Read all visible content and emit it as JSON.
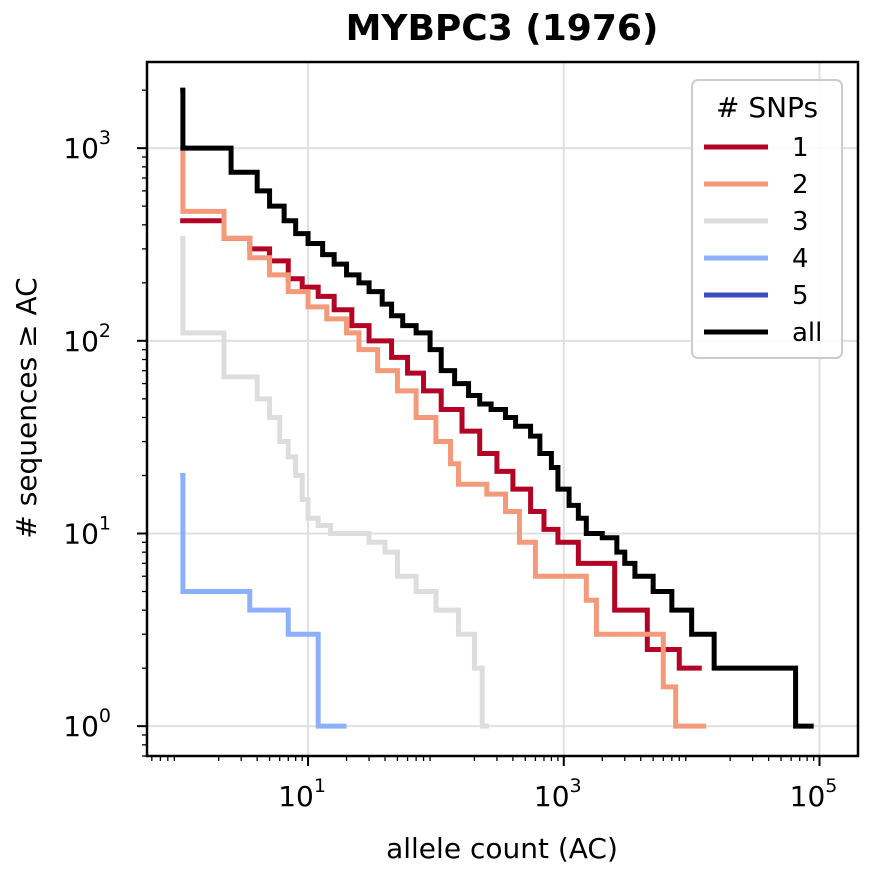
{
  "chart_data": {
    "type": "line",
    "subtype": "step (complementary cumulative count)",
    "title": "MYBPC3 (1976)",
    "xlabel": "allele count (AC)",
    "ylabel": "# sequences ≥ AC",
    "xscale": "log",
    "yscale": "log",
    "xlim": [
      0.55,
      200000
    ],
    "ylim": [
      0.7,
      2800
    ],
    "x_ticks": [
      {
        "value": 10,
        "label_base": "10",
        "label_exp": "1"
      },
      {
        "value": 1000,
        "label_base": "10",
        "label_exp": "3"
      },
      {
        "value": 100000,
        "label_base": "10",
        "label_exp": "5"
      }
    ],
    "y_ticks": [
      {
        "value": 1,
        "label_base": "10",
        "label_exp": "0"
      },
      {
        "value": 10,
        "label_base": "10",
        "label_exp": "1"
      },
      {
        "value": 100,
        "label_base": "10",
        "label_exp": "2"
      },
      {
        "value": 1000,
        "label_base": "10",
        "label_exp": "3"
      }
    ],
    "grid": true,
    "legend": {
      "title": "# SNPs",
      "position": "top-right"
    },
    "series": [
      {
        "name": "1",
        "color": "#b40426",
        "points": [
          [
            1,
            420
          ],
          [
            2.2,
            340
          ],
          [
            3.5,
            300
          ],
          [
            5,
            260
          ],
          [
            7,
            210
          ],
          [
            9,
            190
          ],
          [
            12,
            170
          ],
          [
            16,
            145
          ],
          [
            22,
            120
          ],
          [
            30,
            100
          ],
          [
            45,
            82
          ],
          [
            60,
            68
          ],
          [
            80,
            55
          ],
          [
            110,
            44
          ],
          [
            160,
            34
          ],
          [
            220,
            26
          ],
          [
            300,
            21
          ],
          [
            400,
            17
          ],
          [
            550,
            13
          ],
          [
            700,
            10.5
          ],
          [
            900,
            9
          ],
          [
            1300,
            7
          ],
          [
            2500,
            4
          ],
          [
            4500,
            2.5
          ],
          [
            8000,
            2
          ],
          [
            12000,
            2
          ]
        ]
      },
      {
        "name": "2",
        "color": "#f49a7b",
        "points": [
          [
            1,
            1000
          ],
          [
            1.05,
            470
          ],
          [
            2.2,
            340
          ],
          [
            3.5,
            270
          ],
          [
            5,
            220
          ],
          [
            7,
            180
          ],
          [
            10,
            150
          ],
          [
            14,
            130
          ],
          [
            20,
            110
          ],
          [
            25,
            90
          ],
          [
            35,
            70
          ],
          [
            50,
            55
          ],
          [
            70,
            40
          ],
          [
            100,
            30
          ],
          [
            130,
            23
          ],
          [
            150,
            18
          ],
          [
            250,
            16
          ],
          [
            350,
            13
          ],
          [
            450,
            9
          ],
          [
            600,
            6
          ],
          [
            1500,
            4.5
          ],
          [
            1800,
            3
          ],
          [
            3000,
            3
          ],
          [
            4200,
            3
          ],
          [
            6000,
            1.6
          ],
          [
            7500,
            1
          ],
          [
            13000,
            1
          ]
        ]
      },
      {
        "name": "3",
        "color": "#dddddd",
        "points": [
          [
            1,
            340
          ],
          [
            1.05,
            110
          ],
          [
            2.2,
            65
          ],
          [
            4,
            50
          ],
          [
            5,
            40
          ],
          [
            6,
            30
          ],
          [
            7,
            25
          ],
          [
            8,
            20
          ],
          [
            9,
            15
          ],
          [
            10,
            12
          ],
          [
            12,
            11
          ],
          [
            15,
            10
          ],
          [
            30,
            9
          ],
          [
            40,
            8
          ],
          [
            50,
            6
          ],
          [
            70,
            5
          ],
          [
            100,
            4
          ],
          [
            150,
            3
          ],
          [
            200,
            2
          ],
          [
            230,
            1
          ],
          [
            260,
            1
          ]
        ]
      },
      {
        "name": "4",
        "color": "#8db0fe",
        "points": [
          [
            1,
            20
          ],
          [
            1.05,
            5
          ],
          [
            3.5,
            4
          ],
          [
            7,
            3
          ],
          [
            12,
            1
          ],
          [
            20,
            1
          ]
        ]
      },
      {
        "name": "5",
        "color": "#3b4cc0",
        "points": []
      },
      {
        "name": "all",
        "color": "#000000",
        "points": [
          [
            1,
            2000
          ],
          [
            1.05,
            1000
          ],
          [
            2.5,
            750
          ],
          [
            4,
            600
          ],
          [
            5,
            500
          ],
          [
            6.5,
            420
          ],
          [
            8,
            360
          ],
          [
            10,
            320
          ],
          [
            13,
            280
          ],
          [
            16,
            250
          ],
          [
            20,
            220
          ],
          [
            25,
            200
          ],
          [
            30,
            180
          ],
          [
            38,
            155
          ],
          [
            45,
            135
          ],
          [
            55,
            120
          ],
          [
            70,
            110
          ],
          [
            90,
            90
          ],
          [
            110,
            70
          ],
          [
            140,
            60
          ],
          [
            180,
            52
          ],
          [
            220,
            47
          ],
          [
            270,
            44
          ],
          [
            350,
            40
          ],
          [
            420,
            36
          ],
          [
            550,
            32
          ],
          [
            650,
            26
          ],
          [
            800,
            22
          ],
          [
            900,
            17
          ],
          [
            1100,
            14
          ],
          [
            1300,
            12
          ],
          [
            1500,
            10
          ],
          [
            2000,
            9.5
          ],
          [
            2600,
            8
          ],
          [
            3000,
            7
          ],
          [
            3600,
            6
          ],
          [
            5000,
            5
          ],
          [
            7000,
            4
          ],
          [
            10000,
            3
          ],
          [
            15000,
            2
          ],
          [
            40000,
            2
          ],
          [
            65000,
            1
          ],
          [
            90000,
            1
          ]
        ]
      }
    ]
  }
}
